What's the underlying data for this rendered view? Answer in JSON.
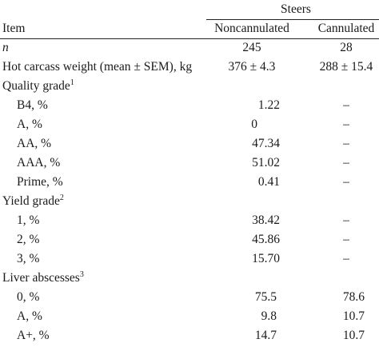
{
  "table": {
    "group_header": "Steers",
    "item_header": "Item",
    "col_noncannulated": "Noncannulated",
    "col_cannulated": "Cannulated",
    "n_label": "n",
    "n_noncannulated": "245",
    "n_cannulated": "28",
    "hcw_label": "Hot carcass weight (mean ± SEM), kg",
    "hcw_noncannulated": "376 ± 4.3",
    "hcw_cannulated": "288 ± 15.4",
    "quality_label": "Quality grade",
    "quality_sup": "1",
    "quality_rows": [
      {
        "label": "B4, %",
        "non": "1.22",
        "can": "–"
      },
      {
        "label": "A, %",
        "non": "0",
        "can": "–"
      },
      {
        "label": "AA, %",
        "non": "47.34",
        "can": "–"
      },
      {
        "label": "AAA, %",
        "non": "51.02",
        "can": "–"
      },
      {
        "label": "Prime, %",
        "non": "0.41",
        "can": "–"
      }
    ],
    "yield_label": "Yield grade",
    "yield_sup": "2",
    "yield_rows": [
      {
        "label": "1, %",
        "non": "38.42",
        "can": "–"
      },
      {
        "label": "2, %",
        "non": "45.86",
        "can": "–"
      },
      {
        "label": "3, %",
        "non": "15.70",
        "can": "–"
      }
    ],
    "liver_label": "Liver abscesses",
    "liver_sup": "3",
    "liver_rows": [
      {
        "label": "0, %",
        "non": "75.5",
        "can": "78.6"
      },
      {
        "label": "A, %",
        "non": "9.8",
        "can": "10.7"
      },
      {
        "label": "A+, %",
        "non": "14.7",
        "can": "10.7"
      }
    ]
  }
}
